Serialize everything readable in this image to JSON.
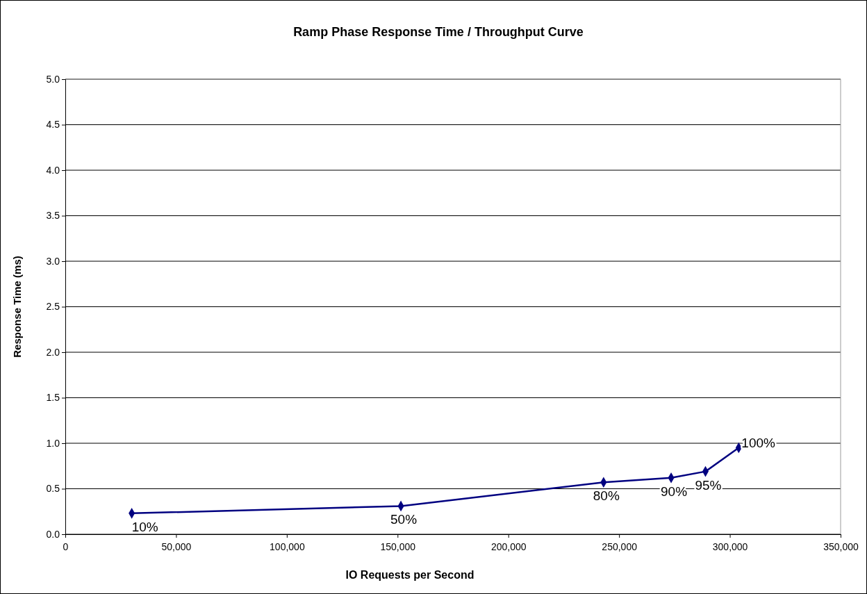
{
  "chart_data": {
    "type": "line",
    "title": "Ramp Phase Response Time / Throughput Curve",
    "xlabel": "IO Requests per Second",
    "ylabel": "Response Time (ms)",
    "x": [
      30000,
      151500,
      243000,
      273500,
      289000,
      304000
    ],
    "series": [
      {
        "color": "#000080",
        "values": [
          0.23,
          0.31,
          0.57,
          0.62,
          0.69,
          0.95
        ]
      }
    ],
    "xlim": [
      0,
      350000
    ],
    "xticks": [
      {
        "value": 0,
        "label": "0"
      },
      {
        "value": 50000,
        "label": "50,000"
      },
      {
        "value": 100000,
        "label": "100,000"
      },
      {
        "value": 150000,
        "label": "150,000"
      },
      {
        "value": 200000,
        "label": "200,000"
      },
      {
        "value": 250000,
        "label": "250,000"
      },
      {
        "value": 300000,
        "label": "300,000"
      },
      {
        "value": 350000,
        "label": "350,000"
      }
    ],
    "ylim": [
      0,
      5
    ],
    "yticks": [
      {
        "value": 0,
        "label": "0.0"
      },
      {
        "value": 0.5,
        "label": "0.5"
      },
      {
        "value": 1,
        "label": "1.0"
      },
      {
        "value": 1.5,
        "label": "1.5"
      },
      {
        "value": 2,
        "label": "2.0"
      },
      {
        "value": 2.5,
        "label": "2.5"
      },
      {
        "value": 3,
        "label": "3.0"
      },
      {
        "value": 3.5,
        "label": "3.5"
      },
      {
        "value": 4,
        "label": "4.0"
      },
      {
        "value": 4.5,
        "label": "4.5"
      },
      {
        "value": 5,
        "label": "5.0"
      }
    ],
    "grid": "y",
    "marker": "diamond",
    "line_style": "solid",
    "annotations": [
      {
        "text": "10%",
        "x": 30000,
        "y": 0.23
      },
      {
        "text": "50%",
        "x": 151500,
        "y": 0.31
      },
      {
        "text": "80%",
        "x": 243000,
        "y": 0.57
      },
      {
        "text": "90%",
        "x": 273500,
        "y": 0.62
      },
      {
        "text": "95%",
        "x": 289000,
        "y": 0.69
      },
      {
        "text": "100%",
        "x": 304000,
        "y": 0.95
      }
    ]
  }
}
